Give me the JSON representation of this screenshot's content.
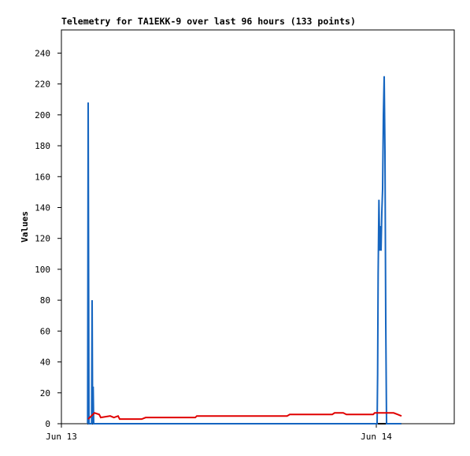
{
  "chart_data": {
    "type": "line",
    "title": "Telemetry for TA1EKK-9 over last 96 hours (133 points)",
    "y_label": "Values",
    "xlim": [
      0,
      29.94
    ],
    "xticks": [
      {
        "value": 0,
        "label": "Jun 13"
      },
      {
        "value": 24,
        "label": "Jun 14"
      }
    ],
    "ylim": [
      0,
      255
    ],
    "yticks": [
      0,
      20,
      40,
      60,
      80,
      100,
      120,
      140,
      160,
      180,
      200,
      220,
      240
    ],
    "grid": false,
    "series": [
      {
        "color": "#000000",
        "x": [
          2.0,
          25.9
        ],
        "values": [
          0,
          0
        ]
      },
      {
        "color": "#1565c0",
        "x": [
          2.0,
          2.04,
          2.1,
          2.3,
          2.34,
          2.38,
          2.42,
          2.46,
          24.06,
          24.1,
          24.14,
          24.2,
          24.26,
          24.3,
          24.36,
          24.42,
          24.48,
          24.54,
          24.6,
          24.66,
          24.72,
          24.78,
          25.9
        ],
        "values": [
          0,
          208,
          0,
          0,
          80,
          0,
          24,
          0,
          0,
          32,
          97,
          145,
          112,
          128,
          112,
          137,
          152,
          200,
          225,
          176,
          65,
          0,
          0
        ]
      },
      {
        "color": "#e00000",
        "x": [
          2.04,
          2.52,
          2.88,
          3.0,
          3.72,
          4.0,
          4.32,
          4.44,
          6.12,
          6.42,
          10.2,
          10.32,
          17.2,
          17.4,
          20.64,
          20.82,
          21.48,
          21.72,
          23.76,
          23.88,
          25.32,
          25.62,
          25.92
        ],
        "values": [
          3,
          7,
          6,
          4,
          5,
          4,
          5,
          3,
          3,
          4,
          4,
          5,
          5,
          6,
          6,
          7,
          7,
          6,
          6,
          7,
          7,
          6,
          5
        ]
      }
    ]
  }
}
